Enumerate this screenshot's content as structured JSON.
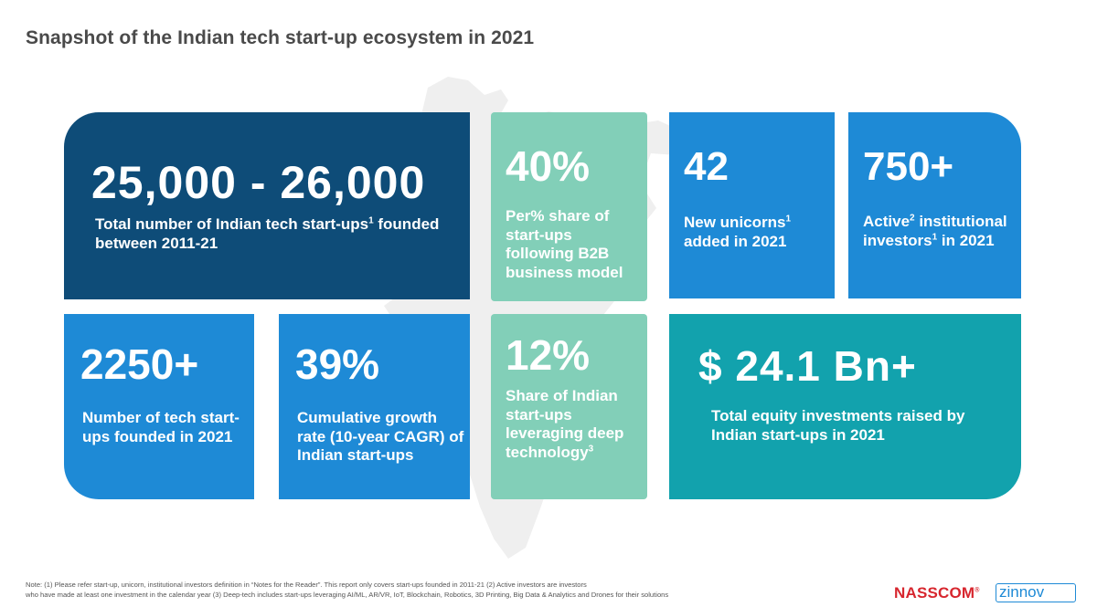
{
  "title": "Snapshot of the Indian tech start-up ecosystem in 2021",
  "cards": [
    {
      "value": "25,000 - 26,000",
      "desc": "Total number of Indian tech start-ups",
      "desc_sup": "1",
      "desc_tail": " founded between 2011-21",
      "color": "#0e4c78"
    },
    {
      "value": "40%",
      "desc": "Per% share of start-ups following B2B business model",
      "color": "#82cfb8"
    },
    {
      "value": "42",
      "desc": "New unicorns",
      "desc_sup": "1",
      "desc_tail": " added in 2021",
      "color": "#1e8ad6"
    },
    {
      "value": "750+",
      "desc": "Active",
      "desc_sup": "2",
      "desc_mid": " institutional investors",
      "desc_sup2": "1",
      "desc_tail": " in 2021",
      "color": "#1e8ad6"
    },
    {
      "value": "2250+",
      "desc": "Number of tech start-ups founded in 2021",
      "color": "#1e8ad6"
    },
    {
      "value": "39%",
      "desc": "Cumulative growth rate (10-year CAGR) of Indian start-ups",
      "color": "#1e8ad6"
    },
    {
      "value": "12%",
      "desc": "Share of Indian start-ups leveraging deep technology",
      "desc_sup": "3",
      "color": "#82cfb8"
    },
    {
      "value": "$ 24.1 Bn+",
      "desc": "Total equity investments raised by Indian start-ups in 2021",
      "color": "#12a2ad"
    }
  ],
  "note": {
    "line1": "Note: (1) Please refer start-up, unicorn, institutional investors definition in “Notes for the Reader”. This report only covers start-ups founded in 2011-21 (2) Active investors are investors",
    "line2": "who have made at least one investment in the calendar year (3) Deep-tech includes start-ups leveraging AI/ML, AR/VR, IoT, Blockchain, Robotics, 3D Printing, Big Data & Analytics and Drones for their solutions"
  },
  "logos": {
    "nasscom": "NASSCOM",
    "nasscom_mark": "®",
    "zinnov": "zinnov"
  }
}
